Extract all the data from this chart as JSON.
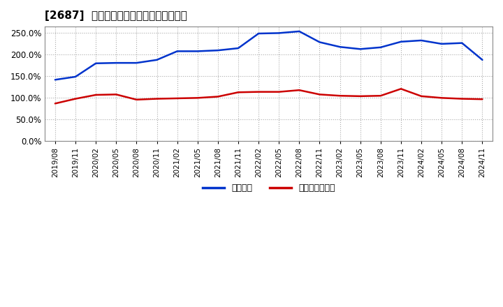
{
  "title": "[2687]  固定比率、固定長期適合率の推移",
  "blue_label": "固定比率",
  "red_label": "固定長期適合率",
  "x_labels": [
    "2019/08",
    "2019/11",
    "2020/02",
    "2020/05",
    "2020/08",
    "2020/11",
    "2021/02",
    "2021/05",
    "2021/08",
    "2021/11",
    "2022/02",
    "2022/05",
    "2022/08",
    "2022/11",
    "2023/02",
    "2023/05",
    "2023/08",
    "2023/11",
    "2024/02",
    "2024/05",
    "2024/08",
    "2024/11"
  ],
  "blue_values": [
    142,
    149,
    180,
    181,
    181,
    188,
    208,
    208,
    210,
    215,
    249,
    250,
    254,
    229,
    218,
    213,
    217,
    230,
    233,
    225,
    227,
    188
  ],
  "red_values": [
    87,
    98,
    107,
    108,
    96,
    98,
    99,
    100,
    103,
    113,
    114,
    114,
    118,
    108,
    105,
    104,
    105,
    121,
    104,
    100,
    98,
    97
  ],
  "ylim": [
    0,
    265
  ],
  "yticks": [
    0,
    50,
    100,
    150,
    200,
    250
  ],
  "blue_color": "#0033cc",
  "red_color": "#cc0000",
  "bg_color": "#ffffff",
  "plot_bg_color": "#ffffff",
  "grid_color": "#aaaaaa",
  "title_fontsize": 11,
  "axis_fontsize": 8,
  "legend_fontsize": 9
}
